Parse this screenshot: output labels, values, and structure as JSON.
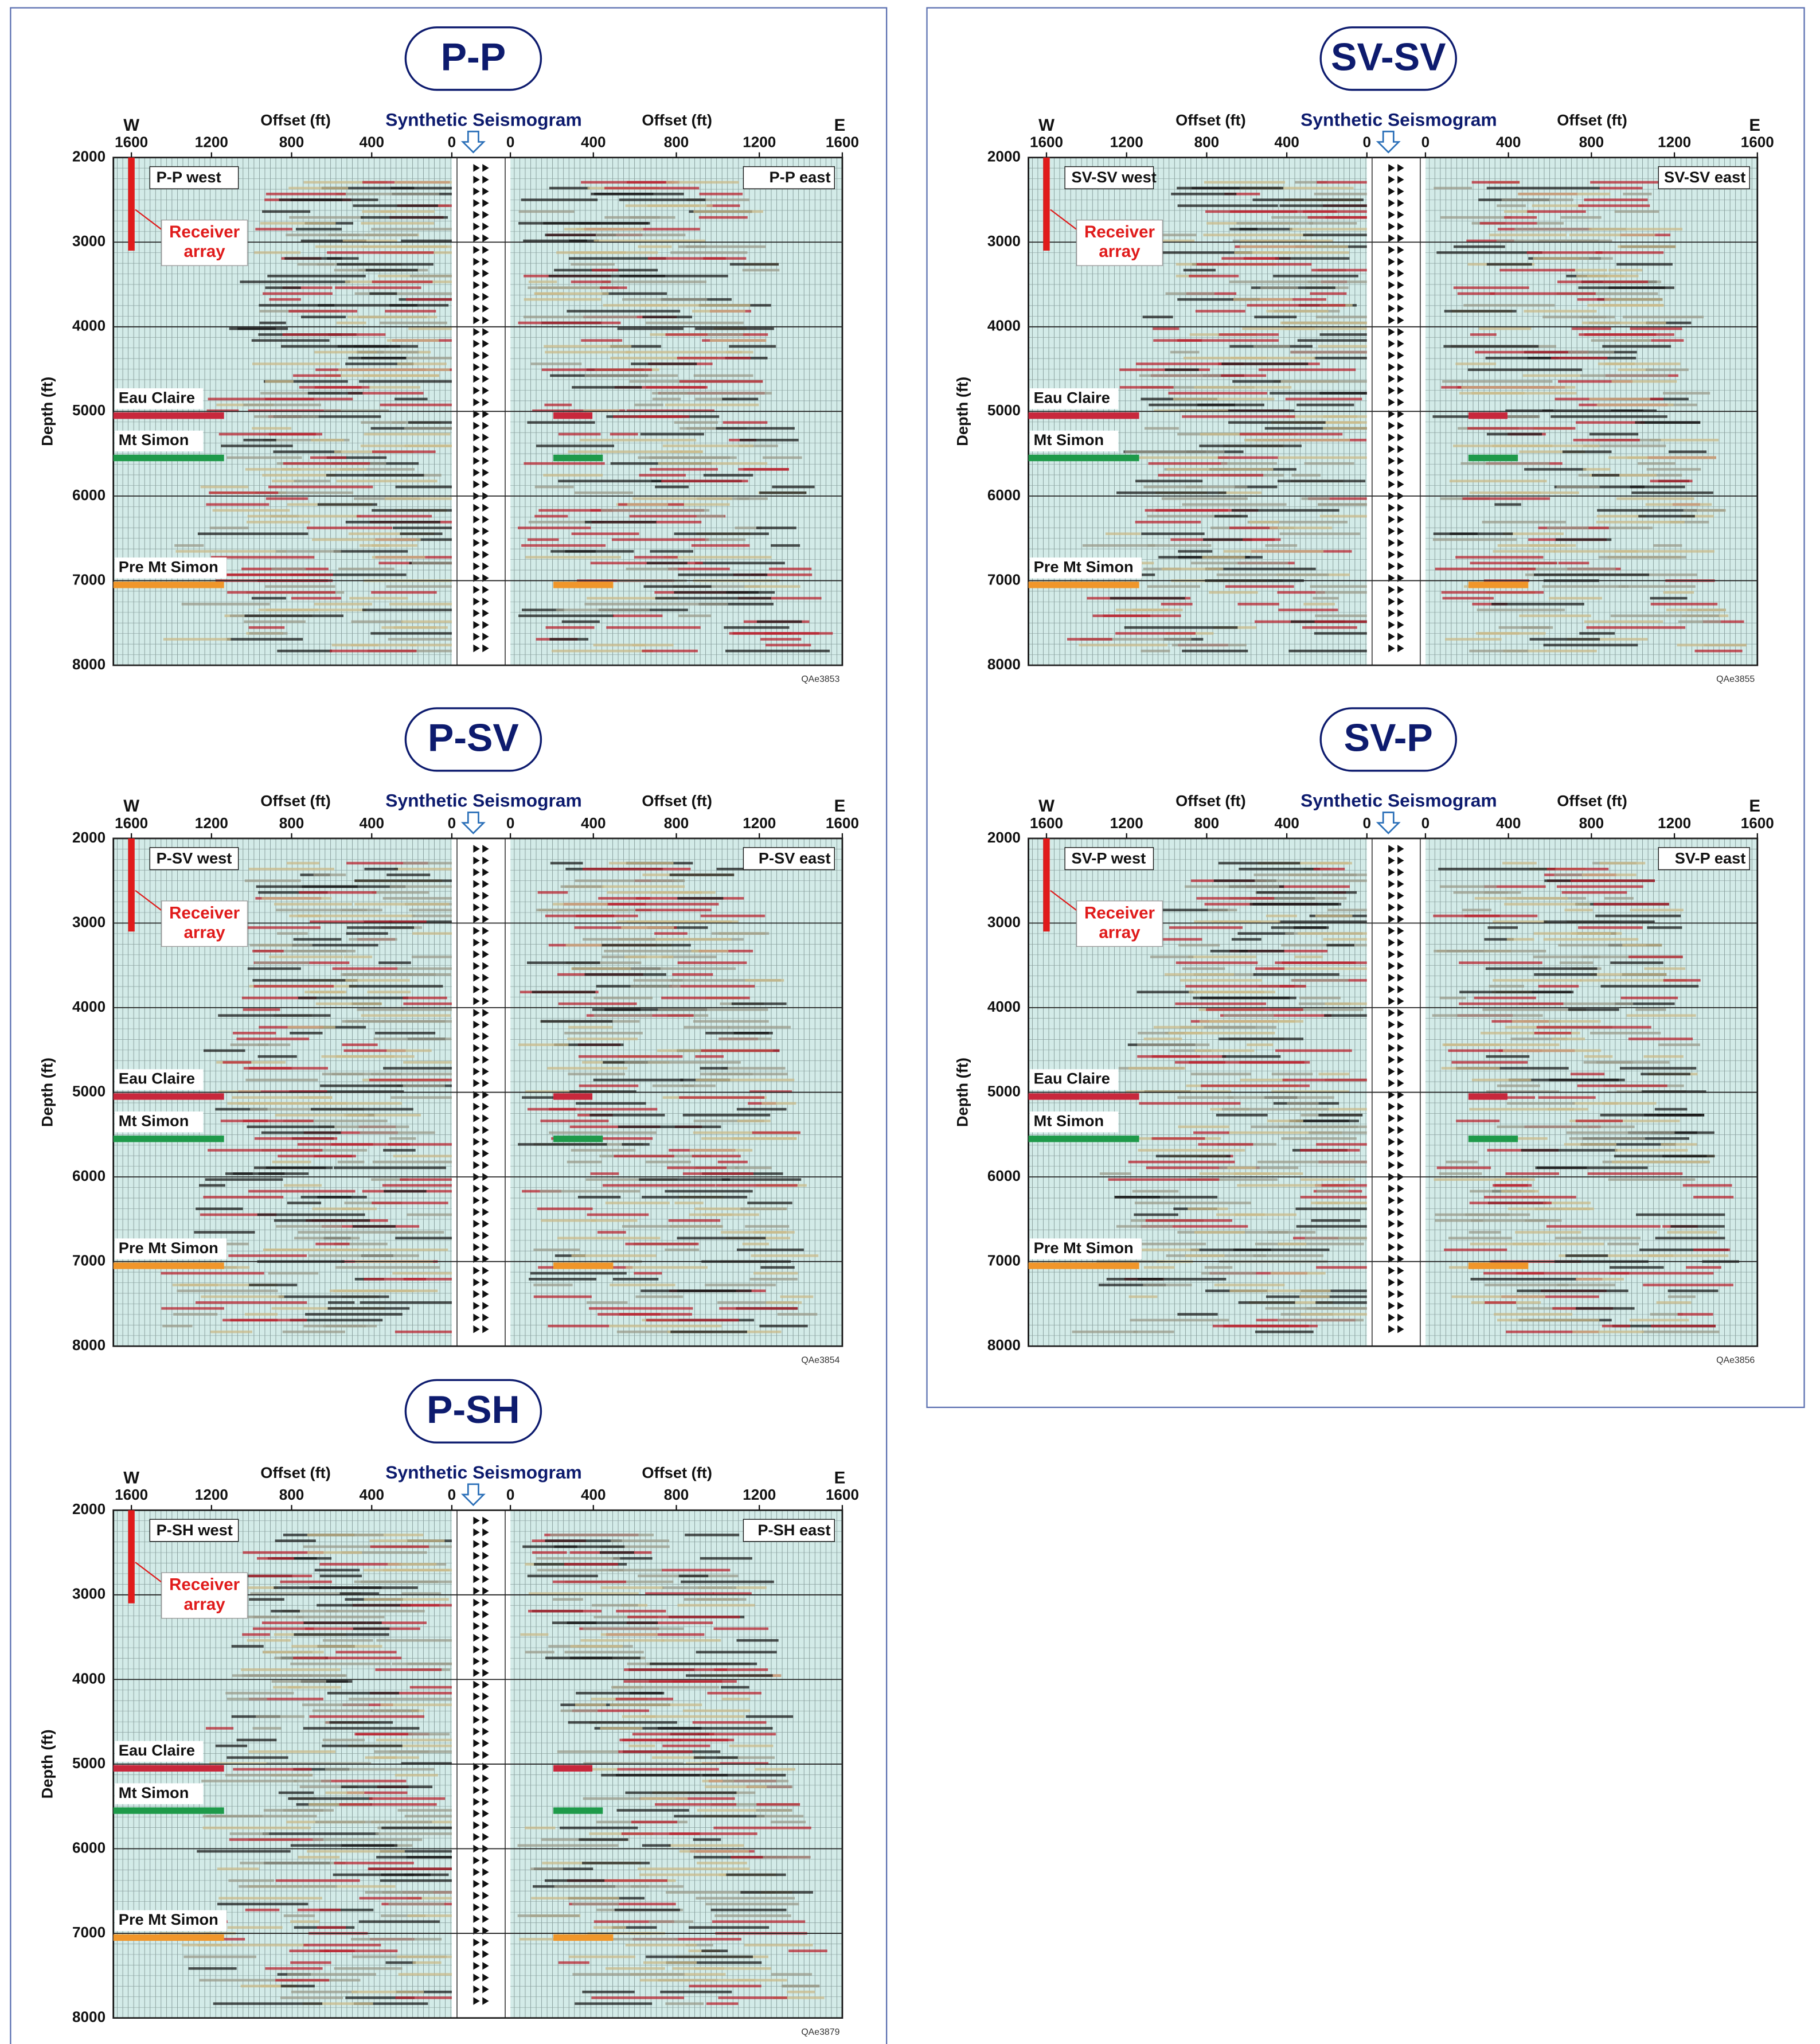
{
  "chart_data": [
    {
      "type": "seismic",
      "title": "P-P",
      "synthetic_label": "Synthetic Seismogram",
      "west_x_label": "Offset (ft)",
      "east_x_label": "Offset (ft)",
      "y_label": "Depth (ft)",
      "west_label": "W",
      "east_label": "E",
      "west_panel_label": "P-P west",
      "east_panel_label": "P-P east",
      "figure_id": "QAe3853",
      "west_xlim": [
        1690,
        0
      ],
      "east_xlim": [
        0,
        1600
      ],
      "west_xticks": [
        1600,
        1200,
        800,
        400,
        0
      ],
      "east_xticks": [
        0,
        400,
        800,
        1200,
        1600
      ],
      "ylim": [
        2000,
        8000
      ],
      "yticks": [
        2000,
        3000,
        4000,
        5000,
        6000,
        7000,
        8000
      ],
      "horizons": [
        {
          "name": "Eau Claire",
          "depth": 5050,
          "color": "#c8283c"
        },
        {
          "name": "Mt Simon",
          "depth": 5550,
          "color": "#1e9a4a"
        },
        {
          "name": "Pre Mt Simon",
          "depth": 7050,
          "color": "#f0962a"
        }
      ],
      "receiver_array": {
        "label_lines": [
          "Receiver",
          "array"
        ],
        "offset": 1600,
        "depth": [
          2000,
          3100
        ]
      }
    },
    {
      "type": "seismic",
      "title": "SV-SV",
      "synthetic_label": "Synthetic Seismogram",
      "west_x_label": "Offset (ft)",
      "east_x_label": "Offset (ft)",
      "y_label": "Depth (ft)",
      "west_label": "W",
      "east_label": "E",
      "west_panel_label": "SV-SV west",
      "east_panel_label": "SV-SV east",
      "figure_id": "QAe3855",
      "west_xlim": [
        1690,
        0
      ],
      "east_xlim": [
        0,
        1600
      ],
      "west_xticks": [
        1600,
        1200,
        800,
        400,
        0
      ],
      "east_xticks": [
        0,
        400,
        800,
        1200,
        1600
      ],
      "ylim": [
        2000,
        8000
      ],
      "yticks": [
        2000,
        3000,
        4000,
        5000,
        6000,
        7000,
        8000
      ],
      "horizons": [
        {
          "name": "Eau Claire",
          "depth": 5050,
          "color": "#c8283c"
        },
        {
          "name": "Mt Simon",
          "depth": 5550,
          "color": "#1e9a4a"
        },
        {
          "name": "Pre Mt Simon",
          "depth": 7050,
          "color": "#f0962a"
        }
      ],
      "receiver_array": {
        "label_lines": [
          "Receiver",
          "array"
        ],
        "offset": 1600,
        "depth": [
          2000,
          3100
        ]
      }
    },
    {
      "type": "seismic",
      "title": "P-SV",
      "synthetic_label": "Synthetic Seismogram",
      "west_x_label": "Offset (ft)",
      "east_x_label": "Offset (ft)",
      "y_label": "Depth (ft)",
      "west_label": "W",
      "east_label": "E",
      "west_panel_label": "P-SV west",
      "east_panel_label": "P-SV east",
      "figure_id": "QAe3854",
      "west_xlim": [
        1690,
        0
      ],
      "east_xlim": [
        0,
        1600
      ],
      "west_xticks": [
        1600,
        1200,
        800,
        400,
        0
      ],
      "east_xticks": [
        0,
        400,
        800,
        1200,
        1600
      ],
      "ylim": [
        2000,
        8000
      ],
      "yticks": [
        2000,
        3000,
        4000,
        5000,
        6000,
        7000,
        8000
      ],
      "horizons": [
        {
          "name": "Eau Claire",
          "depth": 5050,
          "color": "#c8283c"
        },
        {
          "name": "Mt Simon",
          "depth": 5550,
          "color": "#1e9a4a"
        },
        {
          "name": "Pre Mt Simon",
          "depth": 7050,
          "color": "#f0962a"
        }
      ],
      "receiver_array": {
        "label_lines": [
          "Receiver",
          "array"
        ],
        "offset": 1600,
        "depth": [
          2000,
          3100
        ]
      }
    },
    {
      "type": "seismic",
      "title": "SV-P",
      "synthetic_label": "Synthetic Seismogram",
      "west_x_label": "Offset (ft)",
      "east_x_label": "Offset (ft)",
      "y_label": "Depth (ft)",
      "west_label": "W",
      "east_label": "E",
      "west_panel_label": "SV-P west",
      "east_panel_label": "SV-P east",
      "figure_id": "QAe3856",
      "west_xlim": [
        1690,
        0
      ],
      "east_xlim": [
        0,
        1600
      ],
      "west_xticks": [
        1600,
        1200,
        800,
        400,
        0
      ],
      "east_xticks": [
        0,
        400,
        800,
        1200,
        1600
      ],
      "ylim": [
        2000,
        8000
      ],
      "yticks": [
        2000,
        3000,
        4000,
        5000,
        6000,
        7000,
        8000
      ],
      "horizons": [
        {
          "name": "Eau Claire",
          "depth": 5050,
          "color": "#c8283c"
        },
        {
          "name": "Mt Simon",
          "depth": 5550,
          "color": "#1e9a4a"
        },
        {
          "name": "Pre Mt Simon",
          "depth": 7050,
          "color": "#f0962a"
        }
      ],
      "receiver_array": {
        "label_lines": [
          "Receiver",
          "array"
        ],
        "offset": 1600,
        "depth": [
          2000,
          3100
        ]
      }
    },
    {
      "type": "seismic",
      "title": "P-SH",
      "synthetic_label": "Synthetic Seismogram",
      "west_x_label": "Offset (ft)",
      "east_x_label": "Offset (ft)",
      "y_label": "Depth (ft)",
      "west_label": "W",
      "east_label": "E",
      "west_panel_label": "P-SH west",
      "east_panel_label": "P-SH east",
      "figure_id": "QAe3879",
      "west_xlim": [
        1690,
        0
      ],
      "east_xlim": [
        0,
        1600
      ],
      "west_xticks": [
        1600,
        1200,
        800,
        400,
        0
      ],
      "east_xticks": [
        0,
        400,
        800,
        1200,
        1600
      ],
      "ylim": [
        2000,
        8000
      ],
      "yticks": [
        2000,
        3000,
        4000,
        5000,
        6000,
        7000,
        8000
      ],
      "horizons": [
        {
          "name": "Eau Claire",
          "depth": 5050,
          "color": "#c8283c"
        },
        {
          "name": "Mt Simon",
          "depth": 5550,
          "color": "#1e9a4a"
        },
        {
          "name": "Pre Mt Simon",
          "depth": 7050,
          "color": "#f0962a"
        }
      ],
      "receiver_array": {
        "label_lines": [
          "Receiver",
          "array"
        ],
        "offset": 1600,
        "depth": [
          2000,
          3100
        ]
      }
    }
  ]
}
